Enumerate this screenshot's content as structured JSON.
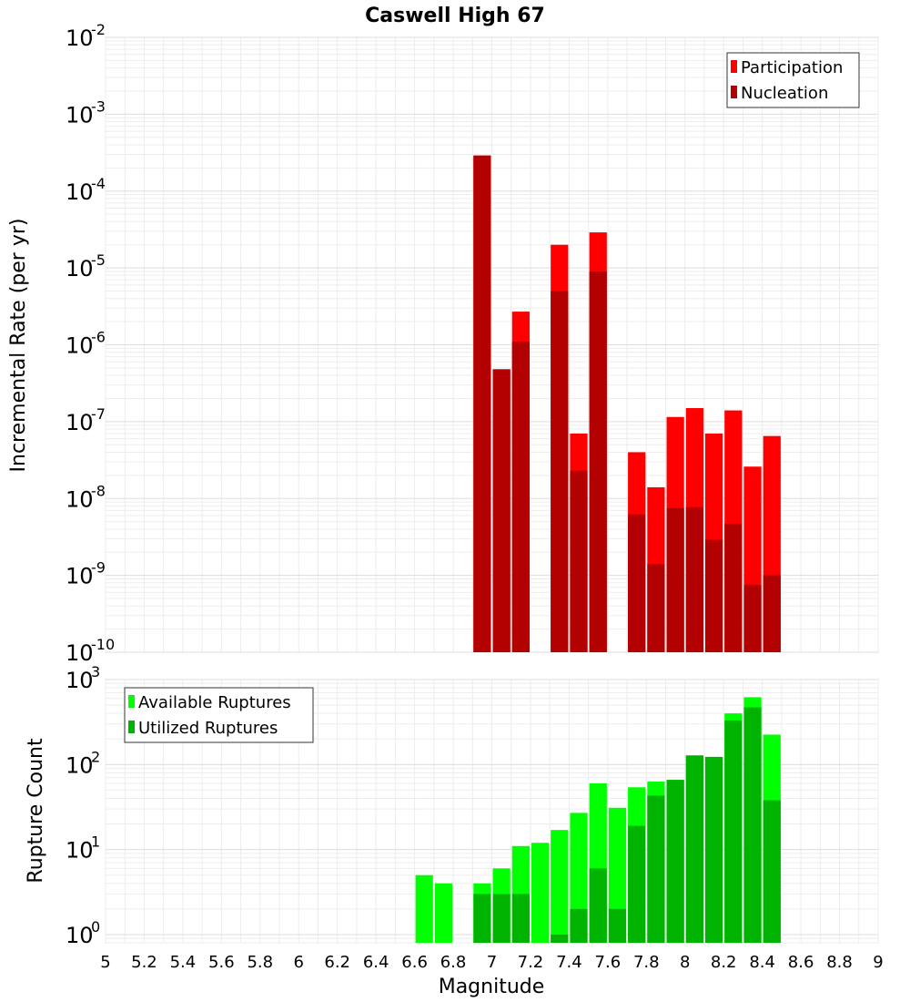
{
  "chart_data": [
    {
      "type": "bar",
      "title": "Caswell High 67",
      "xlabel": "",
      "ylabel": "Incremental Rate (per yr)",
      "y_scale": "log",
      "ylim": [
        1e-10,
        0.01
      ],
      "xlim": [
        5,
        9
      ],
      "bin_width": 0.1,
      "y_tick_exponents": [
        "-10",
        "-9",
        "-8",
        "-7",
        "-6",
        "-5",
        "-4",
        "-3",
        "-2"
      ],
      "legend": {
        "placement": "top-right",
        "entries": [
          "Participation",
          "Nucleation"
        ]
      },
      "grid": true,
      "x": [
        6.95,
        7.05,
        7.15,
        7.35,
        7.45,
        7.55,
        7.75,
        7.85,
        7.95,
        8.05,
        8.15,
        8.25,
        8.35,
        8.45
      ],
      "series": [
        {
          "name": "Participation",
          "color": "#ff0000",
          "values": [
            0.00029,
            4.8e-07,
            2.7e-06,
            2e-05,
            7e-08,
            2.9e-05,
            4e-08,
            1.4e-08,
            1.15e-07,
            1.5e-07,
            7e-08,
            1.4e-07,
            2.6e-08,
            6.5e-08
          ]
        },
        {
          "name": "Nucleation",
          "color": "#b30000",
          "values": [
            0.00029,
            4.8e-07,
            1.1e-06,
            5e-06,
            2.3e-08,
            9e-06,
            6.2e-09,
            1.4e-09,
            7.5e-09,
            7.7e-09,
            2.9e-09,
            4.7e-09,
            7.5e-10,
            1e-09
          ]
        }
      ]
    },
    {
      "type": "bar",
      "xlabel": "Magnitude",
      "ylabel": "Rupture Count",
      "y_scale": "log",
      "ylim": [
        0.8,
        1000
      ],
      "xlim": [
        5,
        9
      ],
      "bin_width": 0.1,
      "y_tick_exponents": [
        "0",
        "1",
        "2",
        "3"
      ],
      "x_ticks": [
        "5",
        "5.2",
        "5.4",
        "5.6",
        "5.8",
        "6",
        "6.2",
        "6.4",
        "6.6",
        "6.8",
        "7",
        "7.2",
        "7.4",
        "7.6",
        "7.8",
        "8",
        "8.2",
        "8.4",
        "8.6",
        "8.8",
        "9"
      ],
      "legend": {
        "placement": "top-left",
        "entries": [
          "Available Ruptures",
          "Utilized Ruptures"
        ]
      },
      "grid": true,
      "x": [
        6.65,
        6.75,
        6.95,
        7.05,
        7.15,
        7.25,
        7.35,
        7.45,
        7.55,
        7.65,
        7.75,
        7.85,
        7.95,
        8.05,
        8.15,
        8.25,
        8.35,
        8.45
      ],
      "series": [
        {
          "name": "Available Ruptures",
          "color": "#00ff00",
          "values": [
            5,
            4,
            4,
            6,
            11,
            12,
            17,
            27,
            60,
            31,
            54,
            63,
            66,
            128,
            123,
            400,
            620,
            225
          ]
        },
        {
          "name": "Utilized Ruptures",
          "color": "#00b300",
          "values": [
            0,
            0,
            3,
            3,
            3,
            0,
            1,
            2,
            6,
            2,
            19,
            43,
            66,
            128,
            123,
            330,
            470,
            38
          ]
        }
      ]
    }
  ]
}
